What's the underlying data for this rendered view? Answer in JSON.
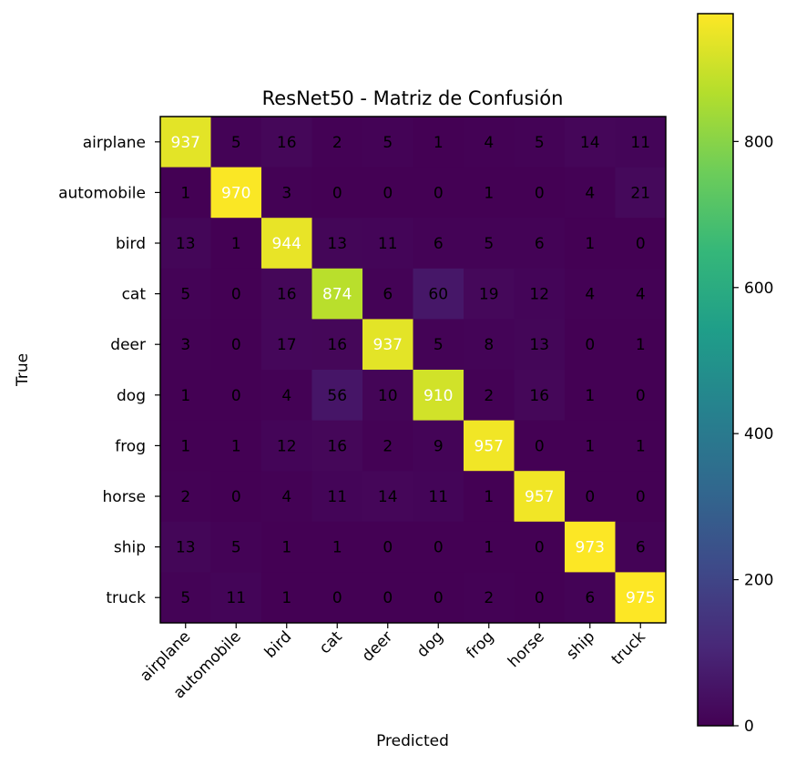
{
  "chart_data": {
    "type": "heatmap",
    "title": "ResNet50 - Matriz de Confusión",
    "xlabel": "Predicted",
    "ylabel": "True",
    "rows": [
      "airplane",
      "automobile",
      "bird",
      "cat",
      "deer",
      "dog",
      "frog",
      "horse",
      "ship",
      "truck"
    ],
    "columns": [
      "airplane",
      "automobile",
      "bird",
      "cat",
      "deer",
      "dog",
      "frog",
      "horse",
      "ship",
      "truck"
    ],
    "values": [
      [
        937,
        5,
        16,
        2,
        5,
        1,
        4,
        5,
        14,
        11
      ],
      [
        1,
        970,
        3,
        0,
        0,
        0,
        1,
        0,
        4,
        21
      ],
      [
        13,
        1,
        944,
        13,
        11,
        6,
        5,
        6,
        1,
        0
      ],
      [
        5,
        0,
        16,
        874,
        6,
        60,
        19,
        12,
        4,
        4
      ],
      [
        3,
        0,
        17,
        16,
        937,
        5,
        8,
        13,
        0,
        1
      ],
      [
        1,
        0,
        4,
        56,
        10,
        910,
        2,
        16,
        1,
        0
      ],
      [
        1,
        1,
        12,
        16,
        2,
        9,
        957,
        0,
        1,
        1
      ],
      [
        2,
        0,
        4,
        11,
        14,
        11,
        1,
        957,
        0,
        0
      ],
      [
        13,
        5,
        1,
        1,
        0,
        0,
        1,
        0,
        973,
        6
      ],
      [
        5,
        11,
        1,
        0,
        0,
        0,
        2,
        0,
        6,
        975
      ]
    ],
    "colormap": "viridis",
    "value_range": [
      0,
      975
    ],
    "colorbar_ticks": [
      0,
      200,
      400,
      600,
      800
    ],
    "grid": false
  }
}
